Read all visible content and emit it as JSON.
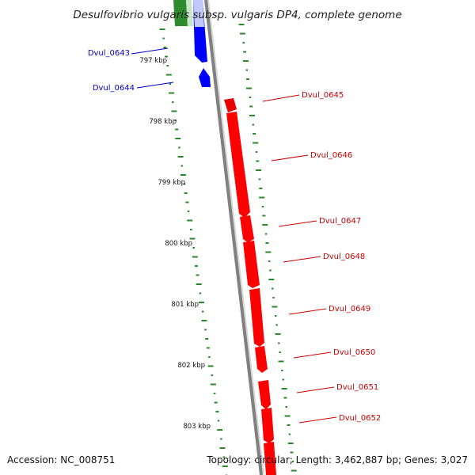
{
  "title": "Desulfovibrio vulgaris subsp. vulgaris DP4, complete genome",
  "footer": {
    "accession": "Accession: NC_008751",
    "summary": "Topology: circular; Length: 3,462,887 bp; Genes: 3,027"
  },
  "colors": {
    "reverse_strand": "#0000ff",
    "forward_strand": "#ff0000",
    "other_feature": "#2e8b2e",
    "backbone": "#808080",
    "gc_ticks": "#2a8a2a"
  },
  "position_labels": [
    "797 kbp",
    "798 kbp",
    "799 kbp",
    "800 kbp",
    "801 kbp",
    "802 kbp",
    "803 kbp"
  ],
  "genes": [
    {
      "name": "Dvul_0643",
      "strand": "reverse"
    },
    {
      "name": "Dvul_0644",
      "strand": "reverse"
    },
    {
      "name": "Dvul_0645",
      "strand": "forward"
    },
    {
      "name": "Dvul_0646",
      "strand": "forward"
    },
    {
      "name": "Dvul_0647",
      "strand": "forward"
    },
    {
      "name": "Dvul_0648",
      "strand": "forward"
    },
    {
      "name": "Dvul_0649",
      "strand": "forward"
    },
    {
      "name": "Dvul_0650",
      "strand": "forward"
    },
    {
      "name": "Dvul_0651",
      "strand": "forward"
    },
    {
      "name": "Dvul_0652",
      "strand": "forward"
    }
  ]
}
